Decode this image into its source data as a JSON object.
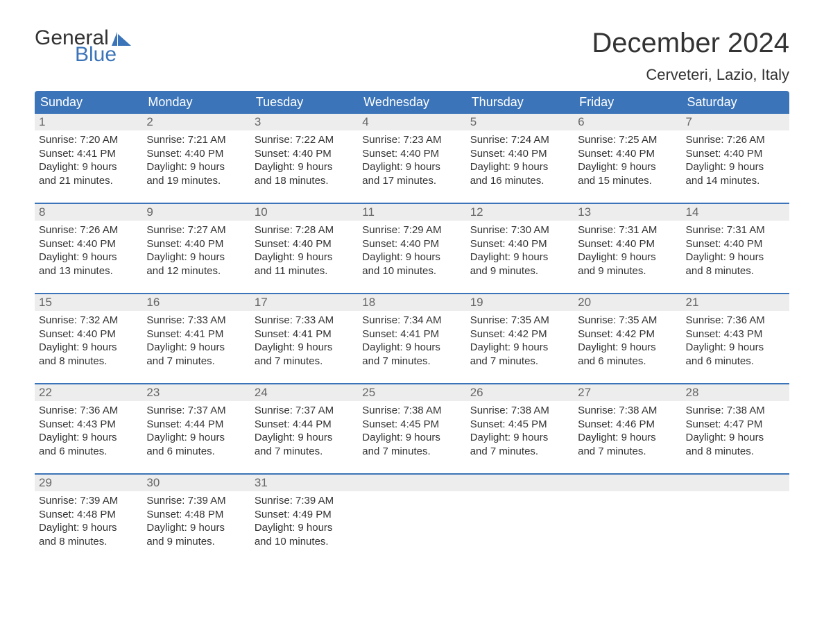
{
  "logo": {
    "general": "General",
    "blue": "Blue",
    "flag_color": "#3b74b8"
  },
  "title": "December 2024",
  "location": "Cerveteri, Lazio, Italy",
  "day_names": [
    "Sunday",
    "Monday",
    "Tuesday",
    "Wednesday",
    "Thursday",
    "Friday",
    "Saturday"
  ],
  "colors": {
    "header_bg": "#3b74b8",
    "header_text": "#ffffff",
    "daynum_bg": "#ededed",
    "daynum_text": "#666666",
    "body_text": "#333333",
    "rule": "#3b74b8",
    "page_bg": "#ffffff"
  },
  "weeks": [
    [
      {
        "n": "1",
        "sunrise": "Sunrise: 7:20 AM",
        "sunset": "Sunset: 4:41 PM",
        "d1": "Daylight: 9 hours",
        "d2": "and 21 minutes."
      },
      {
        "n": "2",
        "sunrise": "Sunrise: 7:21 AM",
        "sunset": "Sunset: 4:40 PM",
        "d1": "Daylight: 9 hours",
        "d2": "and 19 minutes."
      },
      {
        "n": "3",
        "sunrise": "Sunrise: 7:22 AM",
        "sunset": "Sunset: 4:40 PM",
        "d1": "Daylight: 9 hours",
        "d2": "and 18 minutes."
      },
      {
        "n": "4",
        "sunrise": "Sunrise: 7:23 AM",
        "sunset": "Sunset: 4:40 PM",
        "d1": "Daylight: 9 hours",
        "d2": "and 17 minutes."
      },
      {
        "n": "5",
        "sunrise": "Sunrise: 7:24 AM",
        "sunset": "Sunset: 4:40 PM",
        "d1": "Daylight: 9 hours",
        "d2": "and 16 minutes."
      },
      {
        "n": "6",
        "sunrise": "Sunrise: 7:25 AM",
        "sunset": "Sunset: 4:40 PM",
        "d1": "Daylight: 9 hours",
        "d2": "and 15 minutes."
      },
      {
        "n": "7",
        "sunrise": "Sunrise: 7:26 AM",
        "sunset": "Sunset: 4:40 PM",
        "d1": "Daylight: 9 hours",
        "d2": "and 14 minutes."
      }
    ],
    [
      {
        "n": "8",
        "sunrise": "Sunrise: 7:26 AM",
        "sunset": "Sunset: 4:40 PM",
        "d1": "Daylight: 9 hours",
        "d2": "and 13 minutes."
      },
      {
        "n": "9",
        "sunrise": "Sunrise: 7:27 AM",
        "sunset": "Sunset: 4:40 PM",
        "d1": "Daylight: 9 hours",
        "d2": "and 12 minutes."
      },
      {
        "n": "10",
        "sunrise": "Sunrise: 7:28 AM",
        "sunset": "Sunset: 4:40 PM",
        "d1": "Daylight: 9 hours",
        "d2": "and 11 minutes."
      },
      {
        "n": "11",
        "sunrise": "Sunrise: 7:29 AM",
        "sunset": "Sunset: 4:40 PM",
        "d1": "Daylight: 9 hours",
        "d2": "and 10 minutes."
      },
      {
        "n": "12",
        "sunrise": "Sunrise: 7:30 AM",
        "sunset": "Sunset: 4:40 PM",
        "d1": "Daylight: 9 hours",
        "d2": "and 9 minutes."
      },
      {
        "n": "13",
        "sunrise": "Sunrise: 7:31 AM",
        "sunset": "Sunset: 4:40 PM",
        "d1": "Daylight: 9 hours",
        "d2": "and 9 minutes."
      },
      {
        "n": "14",
        "sunrise": "Sunrise: 7:31 AM",
        "sunset": "Sunset: 4:40 PM",
        "d1": "Daylight: 9 hours",
        "d2": "and 8 minutes."
      }
    ],
    [
      {
        "n": "15",
        "sunrise": "Sunrise: 7:32 AM",
        "sunset": "Sunset: 4:40 PM",
        "d1": "Daylight: 9 hours",
        "d2": "and 8 minutes."
      },
      {
        "n": "16",
        "sunrise": "Sunrise: 7:33 AM",
        "sunset": "Sunset: 4:41 PM",
        "d1": "Daylight: 9 hours",
        "d2": "and 7 minutes."
      },
      {
        "n": "17",
        "sunrise": "Sunrise: 7:33 AM",
        "sunset": "Sunset: 4:41 PM",
        "d1": "Daylight: 9 hours",
        "d2": "and 7 minutes."
      },
      {
        "n": "18",
        "sunrise": "Sunrise: 7:34 AM",
        "sunset": "Sunset: 4:41 PM",
        "d1": "Daylight: 9 hours",
        "d2": "and 7 minutes."
      },
      {
        "n": "19",
        "sunrise": "Sunrise: 7:35 AM",
        "sunset": "Sunset: 4:42 PM",
        "d1": "Daylight: 9 hours",
        "d2": "and 7 minutes."
      },
      {
        "n": "20",
        "sunrise": "Sunrise: 7:35 AM",
        "sunset": "Sunset: 4:42 PM",
        "d1": "Daylight: 9 hours",
        "d2": "and 6 minutes."
      },
      {
        "n": "21",
        "sunrise": "Sunrise: 7:36 AM",
        "sunset": "Sunset: 4:43 PM",
        "d1": "Daylight: 9 hours",
        "d2": "and 6 minutes."
      }
    ],
    [
      {
        "n": "22",
        "sunrise": "Sunrise: 7:36 AM",
        "sunset": "Sunset: 4:43 PM",
        "d1": "Daylight: 9 hours",
        "d2": "and 6 minutes."
      },
      {
        "n": "23",
        "sunrise": "Sunrise: 7:37 AM",
        "sunset": "Sunset: 4:44 PM",
        "d1": "Daylight: 9 hours",
        "d2": "and 6 minutes."
      },
      {
        "n": "24",
        "sunrise": "Sunrise: 7:37 AM",
        "sunset": "Sunset: 4:44 PM",
        "d1": "Daylight: 9 hours",
        "d2": "and 7 minutes."
      },
      {
        "n": "25",
        "sunrise": "Sunrise: 7:38 AM",
        "sunset": "Sunset: 4:45 PM",
        "d1": "Daylight: 9 hours",
        "d2": "and 7 minutes."
      },
      {
        "n": "26",
        "sunrise": "Sunrise: 7:38 AM",
        "sunset": "Sunset: 4:45 PM",
        "d1": "Daylight: 9 hours",
        "d2": "and 7 minutes."
      },
      {
        "n": "27",
        "sunrise": "Sunrise: 7:38 AM",
        "sunset": "Sunset: 4:46 PM",
        "d1": "Daylight: 9 hours",
        "d2": "and 7 minutes."
      },
      {
        "n": "28",
        "sunrise": "Sunrise: 7:38 AM",
        "sunset": "Sunset: 4:47 PM",
        "d1": "Daylight: 9 hours",
        "d2": "and 8 minutes."
      }
    ],
    [
      {
        "n": "29",
        "sunrise": "Sunrise: 7:39 AM",
        "sunset": "Sunset: 4:48 PM",
        "d1": "Daylight: 9 hours",
        "d2": "and 8 minutes."
      },
      {
        "n": "30",
        "sunrise": "Sunrise: 7:39 AM",
        "sunset": "Sunset: 4:48 PM",
        "d1": "Daylight: 9 hours",
        "d2": "and 9 minutes."
      },
      {
        "n": "31",
        "sunrise": "Sunrise: 7:39 AM",
        "sunset": "Sunset: 4:49 PM",
        "d1": "Daylight: 9 hours",
        "d2": "and 10 minutes."
      },
      null,
      null,
      null,
      null
    ]
  ]
}
